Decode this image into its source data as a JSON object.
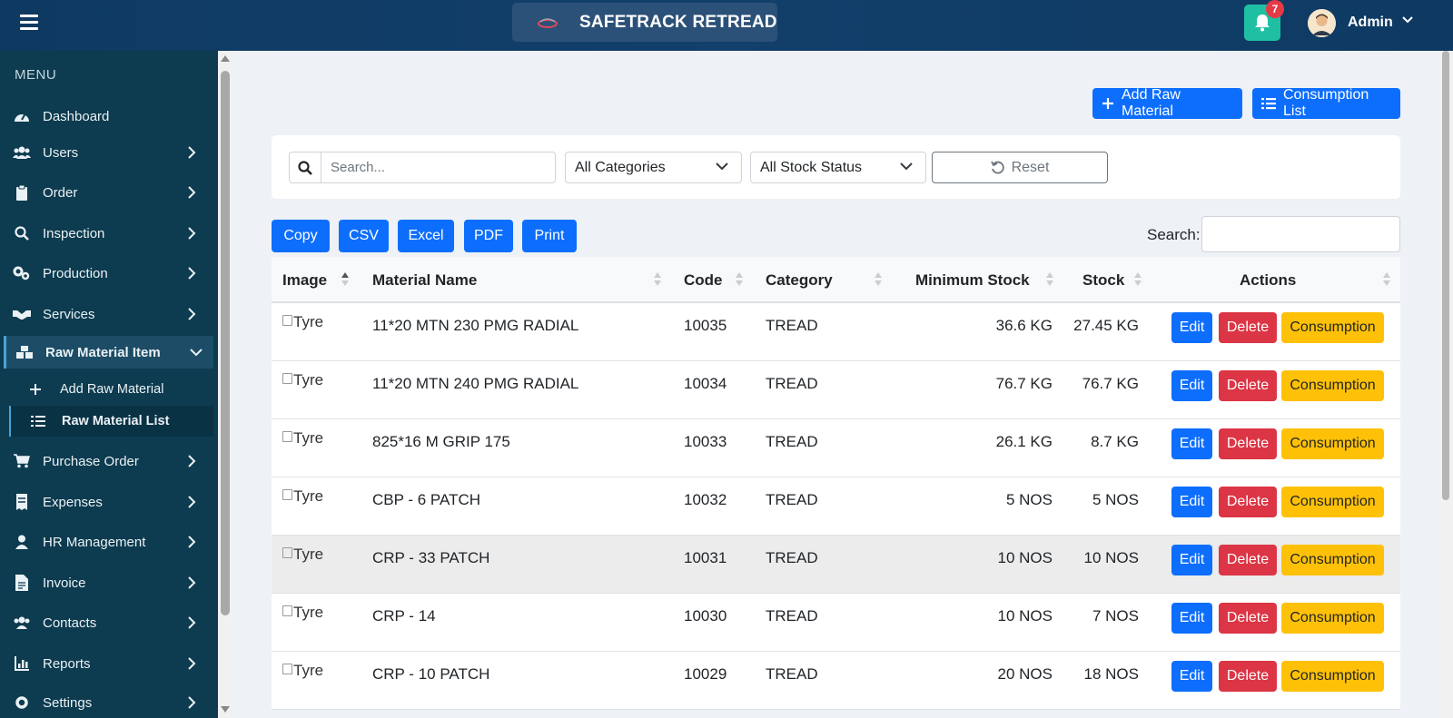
{
  "header": {
    "brand": "SAFETRACK RETREAD",
    "notifications_count": "7",
    "user_name": "Admin"
  },
  "sidebar": {
    "menu_title": "MENU",
    "items": [
      {
        "label": "Dashboard",
        "icon": "gauge-icon"
      },
      {
        "label": "Users",
        "icon": "users-icon"
      },
      {
        "label": "Order",
        "icon": "clipboard-icon"
      },
      {
        "label": "Inspection",
        "icon": "search-icon"
      },
      {
        "label": "Production",
        "icon": "gears-icon"
      },
      {
        "label": "Services",
        "icon": "handshake-icon"
      },
      {
        "label": "Raw Material Item",
        "icon": "boxes-icon"
      },
      {
        "label": "Purchase Order",
        "icon": "cart-icon"
      },
      {
        "label": "Expenses",
        "icon": "receipt-icon"
      },
      {
        "label": "HR Management",
        "icon": "user-icon"
      },
      {
        "label": "Invoice",
        "icon": "invoice-icon"
      },
      {
        "label": "Contacts",
        "icon": "contacts-icon"
      },
      {
        "label": "Reports",
        "icon": "chart-icon"
      },
      {
        "label": "Settings",
        "icon": "gear-icon"
      }
    ],
    "subitems": [
      {
        "label": "Add Raw Material",
        "icon": "plus-icon"
      },
      {
        "label": "Raw Material List",
        "icon": "list-icon"
      }
    ]
  },
  "toolbar": {
    "add_label": "Add Raw Material",
    "consumption_list_label": "Consumption List"
  },
  "filters": {
    "search_placeholder": "Search...",
    "category_selected": "All Categories",
    "stock_status_selected": "All Stock Status",
    "reset_label": "Reset"
  },
  "export_buttons": {
    "copy": "Copy",
    "csv": "CSV",
    "excel": "Excel",
    "pdf": "PDF",
    "print": "Print"
  },
  "table_search_label": "Search:",
  "table": {
    "headers": {
      "image": "Image",
      "name": "Material Name",
      "code": "Code",
      "category": "Category",
      "min_stock": "Minimum Stock",
      "stock": "Stock",
      "actions": "Actions"
    },
    "image_alt": "Tyre",
    "action_labels": {
      "edit": "Edit",
      "delete": "Delete",
      "consumption": "Consumption"
    },
    "rows": [
      {
        "name": "11*20 MTN 230 PMG RADIAL",
        "code": "10035",
        "category": "TREAD",
        "min_stock": "36.6 KG",
        "stock": "27.45 KG"
      },
      {
        "name": "11*20 MTN 240 PMG RADIAL",
        "code": "10034",
        "category": "TREAD",
        "min_stock": "76.7 KG",
        "stock": "76.7 KG"
      },
      {
        "name": "825*16 M GRIP 175",
        "code": "10033",
        "category": "TREAD",
        "min_stock": "26.1 KG",
        "stock": "8.7 KG"
      },
      {
        "name": "CBP - 6 PATCH",
        "code": "10032",
        "category": "TREAD",
        "min_stock": "5 NOS",
        "stock": "5 NOS"
      },
      {
        "name": "CRP - 33 PATCH",
        "code": "10031",
        "category": "TREAD",
        "min_stock": "10 NOS",
        "stock": "10 NOS"
      },
      {
        "name": "CRP - 14",
        "code": "10030",
        "category": "TREAD",
        "min_stock": "10 NOS",
        "stock": "7 NOS"
      },
      {
        "name": "CRP - 10 PATCH",
        "code": "10029",
        "category": "TREAD",
        "min_stock": "20 NOS",
        "stock": "18 NOS"
      }
    ]
  }
}
